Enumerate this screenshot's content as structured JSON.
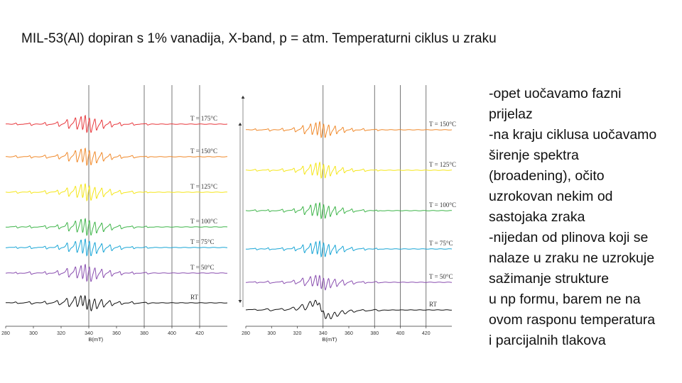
{
  "slide": {
    "title": "MIL-53(Al) dopiran s 1% vanadija, X-band, p = atm. Temperaturni ciklus u zraku",
    "notes": [
      "-opet uočavamo fazni",
      "prijelaz",
      "-na kraju ciklusa uočavamo",
      "širenje spektra",
      "(broadening), očito",
      "uzrokovan nekim od",
      "sastojaka zraka",
      "-nijedan od plinova koji se",
      "nalaze u zraku ne uzrokuje",
      "sažimanje strukture",
      "u np formu, barem ne na",
      "ovom rasponu temperatura",
      "i parcijalnih tlakova"
    ]
  },
  "chart_data": [
    {
      "type": "line",
      "xlabel": "B(mT)",
      "ylabel": "",
      "xlim": [
        280,
        440
      ],
      "x_ticks": [
        "280",
        "300",
        "320",
        "340",
        "360",
        "380",
        "400",
        "420"
      ],
      "series": [
        {
          "name": "T = 175°C",
          "color": "#e8383d"
        },
        {
          "name": "T = 150°C",
          "color": "#f08a2c"
        },
        {
          "name": "T = 125°C",
          "color": "#f5e61a"
        },
        {
          "name": "T = 100°C",
          "color": "#3fb54a"
        },
        {
          "name": "T = 75°C",
          "color": "#1aa6d6"
        },
        {
          "name": "T = 50°C",
          "color": "#8a4fb0"
        },
        {
          "name": "RT",
          "color": "#111111"
        }
      ],
      "arrow": "down"
    },
    {
      "type": "line",
      "xlabel": "B(mT)",
      "ylabel": "",
      "xlim": [
        280,
        440
      ],
      "x_ticks": [
        "280",
        "300",
        "320",
        "340",
        "360",
        "380",
        "400",
        "420"
      ],
      "series": [
        {
          "name": "T = 150°C",
          "color": "#f08a2c"
        },
        {
          "name": "T = 125°C",
          "color": "#f5e61a"
        },
        {
          "name": "T = 100°C",
          "color": "#3fb54a"
        },
        {
          "name": "T = 75°C",
          "color": "#1aa6d6"
        },
        {
          "name": "T = 50°C",
          "color": "#8a4fb0"
        },
        {
          "name": "RT",
          "color": "#111111"
        }
      ],
      "arrow": "up"
    }
  ]
}
